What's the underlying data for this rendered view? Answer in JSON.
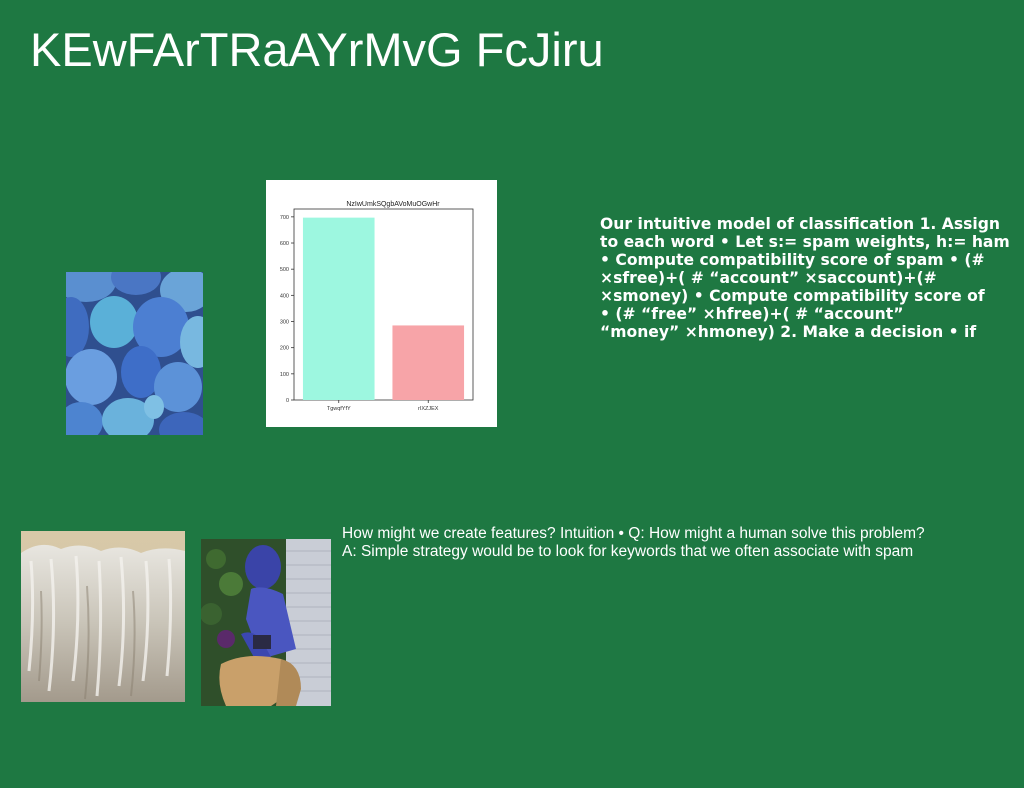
{
  "slide": {
    "title": "KEwFArTRaAYrMvG FcJiru"
  },
  "model_text": {
    "lines": [
      "Our intuitive model of classification 1. Assign",
      "to each word • Let s:= spam weights, h:= ham",
      "• Compute compatibility score of spam • (#",
      "×sfree)+( # “account” ×saccount)+(#",
      "×smoney) • Compute compatibility score of",
      "• (# “free” ×hfree)+( # “account”",
      "“money” ×hmoney) 2. Make a decision • if"
    ]
  },
  "features_text": {
    "lines": [
      "How might we create features? Intuition • Q: How might a human solve this problem?",
      "A: Simple strategy would be to look for keywords that we often associate with spam"
    ]
  },
  "images": {
    "circles": "blue-circles-image",
    "waterfall": "waterfall-image",
    "person": "person-with-camera-image"
  },
  "chart_data": {
    "type": "bar",
    "title": "NzIwUmkSQgbAVoMuOGwHr",
    "categories": [
      "TgwqfYfY",
      "rIXZJEX"
    ],
    "values": [
      697,
      285
    ],
    "colors": [
      "#9df7e0",
      "#f7a4a8"
    ],
    "ylim": [
      0,
      730
    ],
    "yticks": [
      0,
      100,
      200,
      300,
      400,
      500,
      600,
      700
    ],
    "grid": false
  }
}
